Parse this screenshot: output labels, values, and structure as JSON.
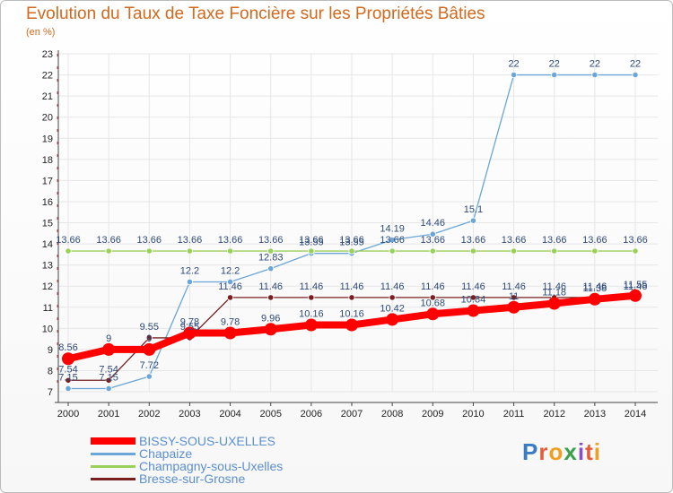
{
  "header": {
    "title": "Evolution du Taux de Taxe Foncière sur les Propriétés Bâties",
    "unit": "(en %)"
  },
  "logo": {
    "text": "Proxiti"
  },
  "chart_data": {
    "type": "line",
    "title": "Evolution du Taux de Taxe Foncière sur les Propriétés Bâties",
    "ylabel": "(en %)",
    "xlabel": "",
    "x": [
      2000,
      2001,
      2002,
      2003,
      2004,
      2005,
      2006,
      2007,
      2008,
      2009,
      2010,
      2011,
      2012,
      2013,
      2014
    ],
    "ylim": [
      7,
      23
    ],
    "yticks": [
      7,
      8,
      9,
      10,
      11,
      12,
      13,
      14,
      15,
      16,
      17,
      18,
      19,
      20,
      21,
      22,
      23
    ],
    "legend_position": "bottom-left",
    "series": [
      {
        "name": "BISSY-SOUS-UXELLES",
        "color": "#ff0000",
        "values": [
          8.56,
          9,
          9,
          9.78,
          9.78,
          9.96,
          10.16,
          10.16,
          10.42,
          10.68,
          10.84,
          11,
          11.18,
          11.38,
          11.55
        ],
        "labels": [
          "8.56",
          "9",
          "9",
          "9.78",
          "9.78",
          "9.96",
          "10.16",
          "10.16",
          "10.42",
          "10.68",
          "10.84",
          "11",
          "11.18",
          "11.38",
          "11.55"
        ]
      },
      {
        "name": "Chapaize",
        "color": "#6aa6d8",
        "values": [
          7.15,
          7.15,
          7.72,
          12.2,
          12.2,
          12.83,
          13.55,
          13.55,
          14.19,
          14.46,
          15.1,
          22,
          22,
          22,
          22
        ],
        "labels": [
          "7.15",
          "7.15",
          "7.72",
          "12.2",
          "12.2",
          "12.83",
          "13.55",
          "13.55",
          "14.19",
          "14.46",
          "15.1",
          "22",
          "22",
          "22",
          "22"
        ]
      },
      {
        "name": "Champagny-sous-Uxelles",
        "color": "#99d05a",
        "values": [
          13.66,
          13.66,
          13.66,
          13.66,
          13.66,
          13.66,
          13.66,
          13.66,
          13.66,
          13.66,
          13.66,
          13.66,
          13.66,
          13.66,
          13.66
        ],
        "labels": [
          "13.66",
          "13.66",
          "13.66",
          "13.66",
          "13.66",
          "13.66",
          "13.66",
          "13.66",
          "13.66",
          "13.66",
          "13.66",
          "13.66",
          "13.66",
          "13.66",
          "13.66"
        ]
      },
      {
        "name": "Bresse-sur-Grosne",
        "color": "#7a1f1f",
        "values": [
          7.54,
          7.54,
          9.55,
          9.55,
          11.46,
          11.46,
          11.46,
          11.46,
          11.46,
          11.46,
          11.46,
          11.46,
          11.46,
          11.46,
          11.46
        ],
        "labels": [
          "7.54",
          "7.54",
          "9.55",
          "9.55",
          "11.46",
          "11.46",
          "11.46",
          "11.46",
          "11.46",
          "11.46",
          "11.46",
          "11.46",
          "11.46",
          "11.46",
          "11.46"
        ]
      }
    ]
  }
}
